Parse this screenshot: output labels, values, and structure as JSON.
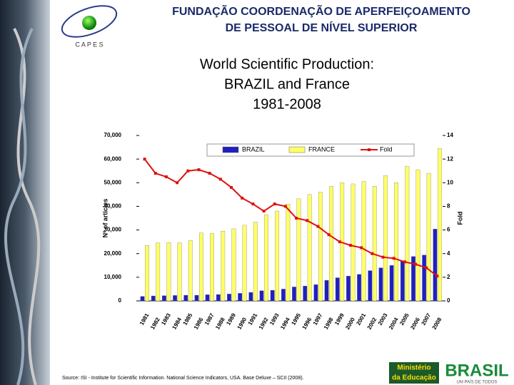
{
  "header": {
    "title_lines": [
      "FUNDAÇÃO COORDENAÇÃO DE APERFEIÇOAMENTO",
      "DE PESSOAL DE NÍVEL SUPERIOR"
    ],
    "logo_text": "C A P E S"
  },
  "chart_data": {
    "type": "bar",
    "title_lines": [
      "World Scientific Production:",
      "BRAZIL and France",
      "1981-2008"
    ],
    "y_label": "Nº of articles",
    "y2_label": "Fold",
    "categories": [
      "1981",
      "1982",
      "1983",
      "1984",
      "1985",
      "1986",
      "1987",
      "1988",
      "1989",
      "1990",
      "1991",
      "1992",
      "1993",
      "1994",
      "1995",
      "1996",
      "1997",
      "1998",
      "1999",
      "2000",
      "2001",
      "2002",
      "2003",
      "2004",
      "2005",
      "2006",
      "2007",
      "2008"
    ],
    "series": [
      {
        "name": "BRAZIL",
        "color": "#1f1fbf",
        "values": [
          1900,
          2100,
          2200,
          2300,
          2400,
          2400,
          2600,
          2700,
          2900,
          3200,
          3600,
          4300,
          4500,
          5000,
          5900,
          6300,
          6900,
          8700,
          9800,
          10500,
          11200,
          12800,
          14000,
          15000,
          17000,
          18800,
          19400,
          30400
        ]
      },
      {
        "name": "FRANCE",
        "color": "#ffff66",
        "values": [
          23500,
          24500,
          24700,
          24500,
          25500,
          28700,
          28500,
          29500,
          30500,
          32000,
          33300,
          36500,
          38000,
          41000,
          43200,
          45000,
          46000,
          48500,
          50000,
          49500,
          50500,
          48500,
          53000,
          50000,
          57000,
          55500,
          54000,
          64500
        ]
      },
      {
        "name": "Fold",
        "type": "line",
        "axis": "y2",
        "color": "#e01010",
        "values": [
          12.0,
          10.8,
          10.5,
          10.0,
          11.0,
          11.1,
          10.8,
          10.3,
          9.6,
          8.7,
          8.2,
          7.6,
          8.2,
          8.0,
          7.0,
          6.8,
          6.3,
          5.6,
          5.0,
          4.7,
          4.5,
          4.0,
          3.7,
          3.6,
          3.3,
          3.1,
          2.8,
          2.1
        ]
      }
    ],
    "ylim": [
      0,
      70000
    ],
    "yticks": [
      0,
      {
        "value": 10000,
        "label": "10,000"
      },
      {
        "value": 20000,
        "label": "20,000"
      },
      {
        "value": 30000,
        "label": "30,000"
      },
      {
        "value": 40000,
        "label": "40,000"
      },
      {
        "value": 50000,
        "label": "50,000"
      },
      {
        "value": 60000,
        "label": "60,000"
      },
      {
        "value": 70000,
        "label": "70,000"
      }
    ],
    "y2lim": [
      0,
      14
    ],
    "y2ticks": [
      0,
      2,
      4,
      6,
      8,
      10,
      12,
      14
    ]
  },
  "footer": {
    "source": "Source: ISI - Institute for Scientific Information. National Science Indicators, USA. Base Deluxe – SCII (2008).",
    "ministry_lines": [
      "Ministério",
      "da Educação"
    ],
    "brand": "BRASIL",
    "slogan": "UM PAÍS DE TODOS"
  }
}
